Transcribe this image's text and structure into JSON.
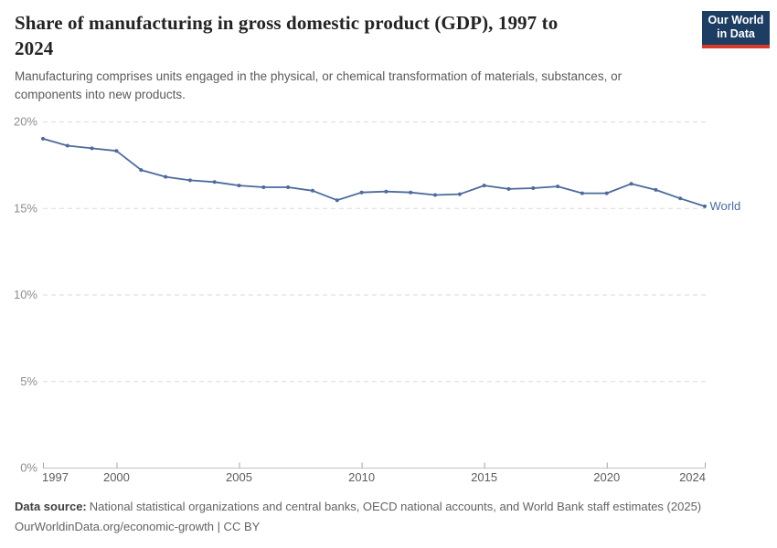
{
  "header": {
    "title_lines": [
      "Share of manufacturing in gross domestic product (GDP), 1997 to",
      "2024"
    ],
    "subtitle_lines": [
      "Manufacturing comprises units engaged in the physical, or chemical transformation of materials, substances, or",
      "components into new products."
    ],
    "logo": {
      "line1": "Our World",
      "line2": "in Data",
      "bg_color": "#1d3d63",
      "accent_color": "#d93b2b"
    }
  },
  "chart_data": {
    "type": "line",
    "title": "Share of manufacturing in gross domestic product (GDP), 1997 to 2024",
    "xlabel": "",
    "ylabel": "",
    "xlim": [
      1997,
      2024
    ],
    "ylim": [
      0,
      20
    ],
    "x_ticks": [
      1997,
      2000,
      2005,
      2010,
      2015,
      2020,
      2024
    ],
    "y_ticks": [
      0,
      5,
      10,
      15,
      20
    ],
    "y_tick_suffix": "%",
    "grid": "horizontal-dashed",
    "legend_position": "end-of-line-label",
    "series": [
      {
        "name": "World",
        "color": "#4c6a9c",
        "x": [
          1997,
          1998,
          1999,
          2000,
          2001,
          2002,
          2003,
          2004,
          2005,
          2006,
          2007,
          2008,
          2009,
          2010,
          2011,
          2012,
          2013,
          2014,
          2015,
          2016,
          2017,
          2018,
          2019,
          2020,
          2021,
          2022,
          2023,
          2024
        ],
        "values": [
          19.0,
          18.6,
          18.45,
          18.3,
          17.2,
          16.8,
          16.6,
          16.5,
          16.3,
          16.2,
          16.2,
          16.0,
          15.45,
          15.9,
          15.95,
          15.9,
          15.75,
          15.8,
          16.3,
          16.1,
          16.15,
          16.25,
          15.85,
          15.85,
          16.4,
          16.05,
          15.55,
          15.1
        ]
      }
    ]
  },
  "footer": {
    "data_source_label": "Data source:",
    "data_source_text": "National statistical organizations and central banks, OECD national accounts, and World Bank staff estimates (2025)",
    "attribution": "OurWorldinData.org/economic-growth | CC BY"
  }
}
